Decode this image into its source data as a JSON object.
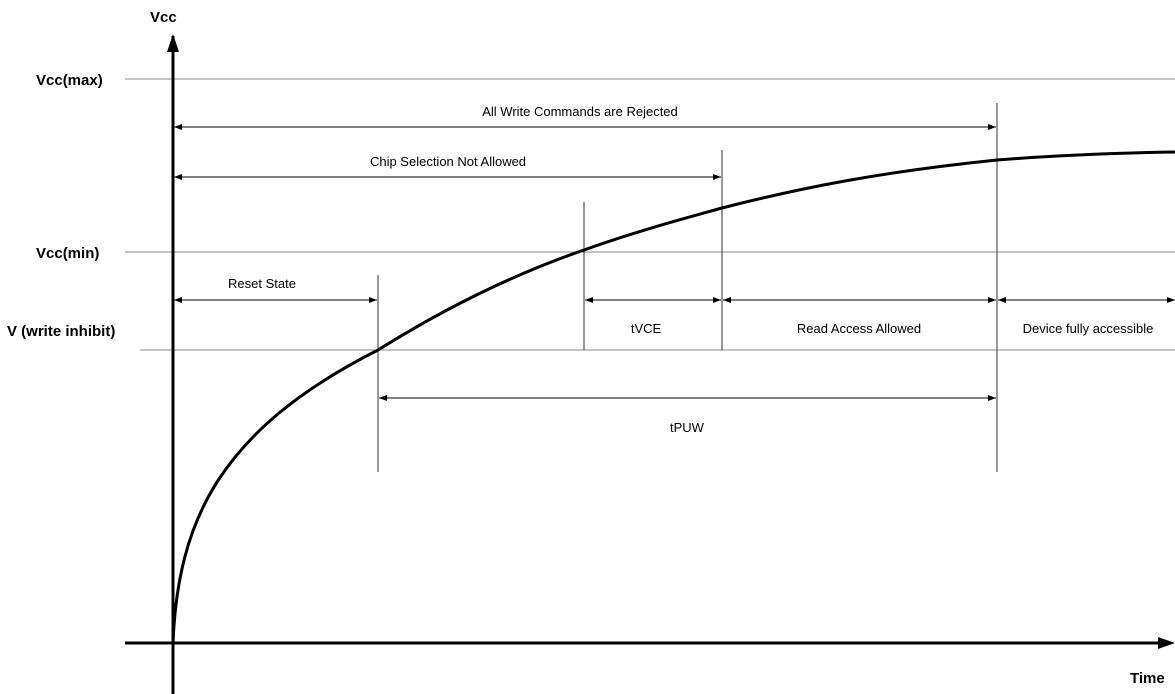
{
  "axes": {
    "y_label": "Vcc",
    "x_label": "Time"
  },
  "levels": {
    "vcc_max": "Vcc(max)",
    "vcc_min": "Vcc(min)",
    "v_write_inhibit": "V (write inhibit)"
  },
  "intervals": {
    "all_write_rejected": "All Write Commands are Rejected",
    "chip_selection_not_allowed": "Chip Selection Not Allowed",
    "reset_state": "Reset State",
    "tvce": "tVCE",
    "read_access_allowed": "Read Access Allowed",
    "device_fully_accessible": "Device fully accessible",
    "tpuw": "tPUW"
  }
}
